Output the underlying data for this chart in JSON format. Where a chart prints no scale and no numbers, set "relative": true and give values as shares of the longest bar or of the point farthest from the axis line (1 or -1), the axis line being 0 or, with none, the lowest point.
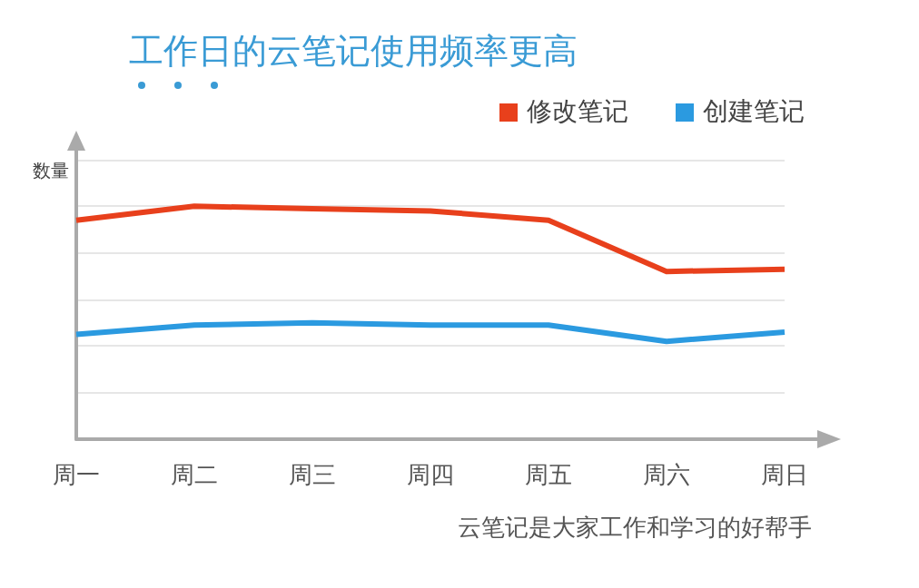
{
  "chart_data": {
    "type": "line",
    "title": "工作日的云笔记使用频率更高",
    "ylabel": "数量",
    "categories": [
      "周一",
      "周二",
      "周三",
      "周四",
      "周五",
      "周六",
      "周日"
    ],
    "relative": true,
    "series": [
      {
        "name": "修改笔记",
        "color": "#e8401c",
        "values": [
          0.94,
          1,
          0.99,
          0.98,
          0.94,
          0.72,
          0.73
        ]
      },
      {
        "name": "创建笔记",
        "color": "#2b9ae0",
        "values": [
          0.45,
          0.49,
          0.5,
          0.49,
          0.49,
          0.42,
          0.46
        ]
      }
    ],
    "legend": "top right",
    "grid": "y",
    "marker": "none",
    "line_style": "solid",
    "annotations": [
      "云笔记是大家工作和学习的好帮手"
    ]
  }
}
